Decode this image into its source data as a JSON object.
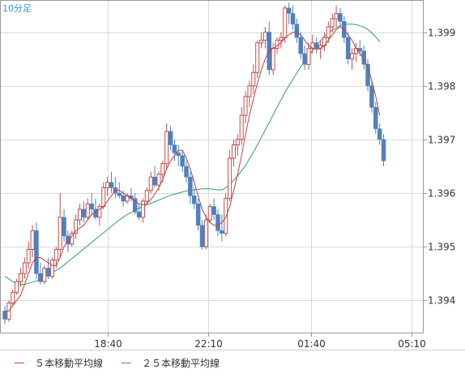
{
  "timeframe_label": "10分足",
  "colors": {
    "up": "#c0504d",
    "down": "#4f81bd",
    "ma5": "#c04040",
    "ma25": "#2e9e6e",
    "grid": "#d9d9d9",
    "axis_text": "#333333",
    "timeframe_text": "#3399cc"
  },
  "chart_data": {
    "type": "candlestick",
    "title": "",
    "y_ticks": [
      "1.394",
      "1.395",
      "1.396",
      "1.397",
      "1.398",
      "1.399"
    ],
    "x_ticks": [
      "18:40",
      "22:10",
      "01:40",
      "05:10"
    ],
    "ylim": [
      1.3934,
      1.3996
    ],
    "grid": true,
    "legend_position": "bottom",
    "series": [
      {
        "name": "５本移動平均線",
        "color_key": "ma5"
      },
      {
        "name": "２５本移動平均線",
        "color_key": "ma25"
      }
    ],
    "candles": [
      [
        1.3938,
        1.3939,
        1.39355,
        1.39365
      ],
      [
        1.39365,
        1.394,
        1.3936,
        1.39395
      ],
      [
        1.39395,
        1.3942,
        1.3939,
        1.39415
      ],
      [
        1.39415,
        1.3944,
        1.3941,
        1.39435
      ],
      [
        1.39435,
        1.3946,
        1.39425,
        1.3945
      ],
      [
        1.3945,
        1.3948,
        1.3944,
        1.3947
      ],
      [
        1.3947,
        1.3951,
        1.3946,
        1.39495
      ],
      [
        1.39495,
        1.3954,
        1.3948,
        1.3953
      ],
      [
        1.3953,
        1.39545,
        1.3944,
        1.3945
      ],
      [
        1.3945,
        1.3947,
        1.3943,
        1.39435
      ],
      [
        1.39435,
        1.39465,
        1.3943,
        1.3946
      ],
      [
        1.3946,
        1.3948,
        1.3944,
        1.39445
      ],
      [
        1.39445,
        1.3948,
        1.3944,
        1.39475
      ],
      [
        1.39475,
        1.395,
        1.3946,
        1.39495
      ],
      [
        1.39495,
        1.396,
        1.3948,
        1.39555
      ],
      [
        1.39555,
        1.3957,
        1.3951,
        1.3952
      ],
      [
        1.3952,
        1.3953,
        1.3949,
        1.39505
      ],
      [
        1.39505,
        1.3953,
        1.395,
        1.39525
      ],
      [
        1.39525,
        1.3956,
        1.39515,
        1.3955
      ],
      [
        1.3955,
        1.3958,
        1.3954,
        1.3957
      ],
      [
        1.3957,
        1.39585,
        1.39545,
        1.39555
      ],
      [
        1.39555,
        1.3959,
        1.3955,
        1.3958
      ],
      [
        1.3958,
        1.396,
        1.3956,
        1.3957
      ],
      [
        1.3957,
        1.3959,
        1.3955,
        1.39555
      ],
      [
        1.39555,
        1.3958,
        1.3954,
        1.39575
      ],
      [
        1.39575,
        1.3962,
        1.3957,
        1.3961
      ],
      [
        1.3961,
        1.3963,
        1.39595,
        1.3962
      ],
      [
        1.3962,
        1.3964,
        1.396,
        1.3961
      ],
      [
        1.3961,
        1.3963,
        1.3959,
        1.396
      ],
      [
        1.396,
        1.3962,
        1.3959,
        1.39595
      ],
      [
        1.39595,
        1.39605,
        1.39575,
        1.39585
      ],
      [
        1.39585,
        1.396,
        1.3958,
        1.39595
      ],
      [
        1.39595,
        1.3961,
        1.39585,
        1.3959
      ],
      [
        1.3959,
        1.396,
        1.3956,
        1.39565
      ],
      [
        1.39565,
        1.3958,
        1.3955,
        1.39555
      ],
      [
        1.39555,
        1.3959,
        1.39545,
        1.39585
      ],
      [
        1.39585,
        1.3961,
        1.3958,
        1.39605
      ],
      [
        1.39605,
        1.3964,
        1.396,
        1.3963
      ],
      [
        1.3963,
        1.3965,
        1.3961,
        1.39615
      ],
      [
        1.39615,
        1.3964,
        1.39605,
        1.39635
      ],
      [
        1.39635,
        1.3966,
        1.3962,
        1.39655
      ],
      [
        1.39655,
        1.3973,
        1.39645,
        1.39715
      ],
      [
        1.39715,
        1.39725,
        1.3968,
        1.3969
      ],
      [
        1.3969,
        1.397,
        1.3966,
        1.39675
      ],
      [
        1.39675,
        1.3969,
        1.3965,
        1.3967
      ],
      [
        1.3967,
        1.3968,
        1.3964,
        1.3965
      ],
      [
        1.3965,
        1.3966,
        1.3962,
        1.3963
      ],
      [
        1.3963,
        1.3964,
        1.3958,
        1.39595
      ],
      [
        1.39595,
        1.3961,
        1.3957,
        1.3958
      ],
      [
        1.3958,
        1.3959,
        1.3953,
        1.3954
      ],
      [
        1.3954,
        1.3955,
        1.39495,
        1.395
      ],
      [
        1.395,
        1.3956,
        1.39495,
        1.3955
      ],
      [
        1.3955,
        1.3958,
        1.39545,
        1.39575
      ],
      [
        1.39575,
        1.3959,
        1.3955,
        1.3956
      ],
      [
        1.3956,
        1.3957,
        1.3952,
        1.3953
      ],
      [
        1.3953,
        1.3956,
        1.3951,
        1.39525
      ],
      [
        1.39525,
        1.396,
        1.3952,
        1.3959
      ],
      [
        1.3959,
        1.3968,
        1.39585,
        1.39665
      ],
      [
        1.39665,
        1.397,
        1.3965,
        1.3969
      ],
      [
        1.3969,
        1.3971,
        1.3967,
        1.397
      ],
      [
        1.397,
        1.3976,
        1.3969,
        1.39745
      ],
      [
        1.39745,
        1.3979,
        1.3973,
        1.3978
      ],
      [
        1.3978,
        1.3981,
        1.3976,
        1.398
      ],
      [
        1.398,
        1.3984,
        1.39785,
        1.39825
      ],
      [
        1.39825,
        1.39885,
        1.39815,
        1.3988
      ],
      [
        1.3988,
        1.399,
        1.3987,
        1.39885
      ],
      [
        1.39885,
        1.3991,
        1.3987,
        1.399
      ],
      [
        1.399,
        1.3992,
        1.3982,
        1.3983
      ],
      [
        1.3983,
        1.3988,
        1.3982,
        1.3987
      ],
      [
        1.3987,
        1.3989,
        1.3986,
        1.39885
      ],
      [
        1.39885,
        1.399,
        1.3987,
        1.3989
      ],
      [
        1.3989,
        1.3995,
        1.3988,
        1.39945
      ],
      [
        1.39945,
        1.39955,
        1.39915,
        1.39935
      ],
      [
        1.39935,
        1.3995,
        1.39905,
        1.39915
      ],
      [
        1.39915,
        1.39925,
        1.3988,
        1.3989
      ],
      [
        1.3989,
        1.399,
        1.3985,
        1.3986
      ],
      [
        1.3986,
        1.39875,
        1.3983,
        1.3984
      ],
      [
        1.3984,
        1.3988,
        1.3983,
        1.3987
      ],
      [
        1.3987,
        1.39895,
        1.3986,
        1.3988
      ],
      [
        1.3988,
        1.3989,
        1.3986,
        1.3987
      ],
      [
        1.3987,
        1.39885,
        1.3985,
        1.39875
      ],
      [
        1.39875,
        1.399,
        1.39865,
        1.3989
      ],
      [
        1.3989,
        1.3992,
        1.3988,
        1.3991
      ],
      [
        1.3991,
        1.39935,
        1.399,
        1.39925
      ],
      [
        1.39925,
        1.3995,
        1.3991,
        1.39935
      ],
      [
        1.39935,
        1.39945,
        1.3991,
        1.3992
      ],
      [
        1.3992,
        1.3993,
        1.3988,
        1.3989
      ],
      [
        1.3989,
        1.399,
        1.3984,
        1.3985
      ],
      [
        1.3985,
        1.3987,
        1.3983,
        1.3986
      ],
      [
        1.3986,
        1.3988,
        1.39845,
        1.3987
      ],
      [
        1.3987,
        1.39885,
        1.39855,
        1.39865
      ],
      [
        1.39865,
        1.39875,
        1.3983,
        1.3984
      ],
      [
        1.3984,
        1.3985,
        1.3979,
        1.398
      ],
      [
        1.398,
        1.3981,
        1.3975,
        1.3976
      ],
      [
        1.3976,
        1.3977,
        1.3971,
        1.3972
      ],
      [
        1.3972,
        1.3973,
        1.3969,
        1.397
      ],
      [
        1.397,
        1.3971,
        1.3965,
        1.3966
      ]
    ],
    "ma5": [
      1.3938,
      1.3938,
      1.3939,
      1.394,
      1.3941,
      1.3943,
      1.3945,
      1.3947,
      1.3948,
      1.3948,
      1.39475,
      1.3947,
      1.39465,
      1.39465,
      1.3948,
      1.395,
      1.3951,
      1.3952,
      1.3953,
      1.39535,
      1.3954,
      1.3955,
      1.3956,
      1.39565,
      1.3957,
      1.39575,
      1.39585,
      1.39595,
      1.39605,
      1.39605,
      1.396,
      1.39595,
      1.3959,
      1.39585,
      1.3958,
      1.39578,
      1.3958,
      1.39588,
      1.39598,
      1.3961,
      1.39625,
      1.39645,
      1.3966,
      1.3967,
      1.3968,
      1.3968,
      1.39665,
      1.39645,
      1.3962,
      1.39595,
      1.3957,
      1.39555,
      1.39545,
      1.3954,
      1.3954,
      1.39545,
      1.39555,
      1.39575,
      1.39605,
      1.39635,
      1.3967,
      1.3971,
      1.39745,
      1.39775,
      1.39805,
      1.3983,
      1.3985,
      1.39865,
      1.3987,
      1.39875,
      1.3988,
      1.3989,
      1.39895,
      1.399,
      1.399,
      1.39895,
      1.39885,
      1.39875,
      1.3987,
      1.39868,
      1.3987,
      1.39875,
      1.39885,
      1.39895,
      1.39905,
      1.3991,
      1.39905,
      1.39895,
      1.39885,
      1.3987,
      1.3986,
      1.3985,
      1.39835,
      1.3981,
      1.3978,
      1.39745
    ],
    "ma25": [
      1.39445,
      1.3944,
      1.39435,
      1.39432,
      1.3943,
      1.3943,
      1.39432,
      1.39434,
      1.39436,
      1.3944,
      1.39444,
      1.39448,
      1.39452,
      1.39456,
      1.3946,
      1.39466,
      1.39472,
      1.39478,
      1.39484,
      1.3949,
      1.39496,
      1.39502,
      1.39508,
      1.39514,
      1.3952,
      1.39526,
      1.39532,
      1.39538,
      1.39544,
      1.3955,
      1.39555,
      1.3956,
      1.39564,
      1.39568,
      1.39572,
      1.39575,
      1.39578,
      1.39581,
      1.39584,
      1.39587,
      1.3959,
      1.39593,
      1.39596,
      1.39598,
      1.396,
      1.39602,
      1.39604,
      1.39605,
      1.39606,
      1.39607,
      1.39608,
      1.39608,
      1.39608,
      1.39607,
      1.39606,
      1.39606,
      1.3961,
      1.39616,
      1.39624,
      1.39632,
      1.39642,
      1.39652,
      1.39664,
      1.39676,
      1.3969,
      1.39704,
      1.39718,
      1.39732,
      1.39746,
      1.3976,
      1.39774,
      1.39788,
      1.398,
      1.39812,
      1.39824,
      1.39836,
      1.39846,
      1.39856,
      1.39866,
      1.39876,
      1.39884,
      1.39892,
      1.39898,
      1.39904,
      1.39908,
      1.39912,
      1.39914,
      1.39915,
      1.39915,
      1.39914,
      1.39912,
      1.39909,
      1.39905,
      1.39899,
      1.39891,
      1.39882
    ]
  }
}
